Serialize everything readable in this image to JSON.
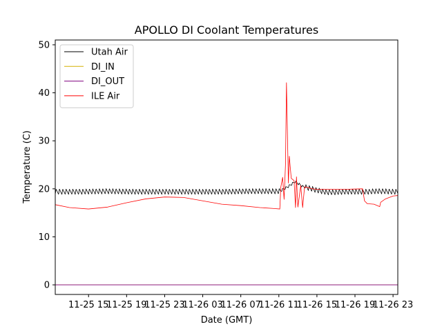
{
  "chart_data": {
    "type": "line",
    "title": "APOLLO DI Coolant Temperatures",
    "xlabel": "Date (GMT)",
    "ylabel": "Temperature (C)",
    "xlim": [
      11.5,
      47.5
    ],
    "ylim": [
      -2,
      51
    ],
    "x_unit": "hours since 2024-11-25 00:00 GMT",
    "x_ticks": [
      {
        "value": 15,
        "label": "11-25 15"
      },
      {
        "value": 19,
        "label": "11-25 19"
      },
      {
        "value": 23,
        "label": "11-25 23"
      },
      {
        "value": 27,
        "label": "11-26 03"
      },
      {
        "value": 31,
        "label": "11-26 07"
      },
      {
        "value": 35,
        "label": "11-26 11"
      },
      {
        "value": 39,
        "label": "11-26 15"
      },
      {
        "value": 43,
        "label": "11-26 19"
      },
      {
        "value": 47,
        "label": "11-26 23"
      }
    ],
    "y_ticks": [
      0,
      10,
      20,
      30,
      40,
      50
    ],
    "legend_position": "top-left",
    "series": [
      {
        "name": "Utah Air",
        "color": "#000000",
        "x": [
          11.5,
          14,
          17,
          20,
          23,
          26,
          29,
          32,
          35.1,
          36,
          36.7,
          37.5,
          38.3,
          39,
          40,
          41,
          42,
          43,
          44,
          44.5,
          45,
          46,
          47,
          47.5
        ],
        "y": [
          19.4,
          19.4,
          19.5,
          19.4,
          19.4,
          19.4,
          19.4,
          19.5,
          19.5,
          20.5,
          21.5,
          20.5,
          20.1,
          19.7,
          19.3,
          19.3,
          19.4,
          19.4,
          19.4,
          19.4,
          19.5,
          19.5,
          19.4,
          19.4
        ],
        "oscillation_amplitude": 0.55,
        "oscillation_period_h": 0.35
      },
      {
        "name": "DI_IN",
        "color": "#d4b000",
        "x": [
          11.5,
          47.5
        ],
        "y": [
          0,
          0
        ]
      },
      {
        "name": "DI_OUT",
        "color": "#800080",
        "x": [
          11.5,
          47.5
        ],
        "y": [
          0,
          0
        ]
      },
      {
        "name": "ILE Air",
        "color": "#ff0000",
        "x": [
          11.5,
          13,
          15,
          17,
          19,
          21,
          23,
          25,
          27,
          29,
          31,
          33,
          34.5,
          35.1,
          35.2,
          35.4,
          35.55,
          35.7,
          35.8,
          36.0,
          36.1,
          36.3,
          36.6,
          36.75,
          36.85,
          37.0,
          37.3,
          37.5,
          37.7,
          38.0,
          38.5,
          39,
          40,
          42,
          43.8,
          44.0,
          44.3,
          45,
          45.6,
          45.7,
          46.2,
          47,
          47.5
        ],
        "y": [
          16.7,
          16.1,
          15.8,
          16.2,
          17.1,
          17.9,
          18.3,
          18.2,
          17.5,
          16.8,
          16.5,
          16.1,
          15.9,
          15.8,
          20.3,
          22.4,
          17.8,
          25.2,
          42.1,
          21.2,
          26.8,
          22.2,
          21.7,
          16.1,
          22.5,
          16.2,
          20.7,
          16.1,
          20.4,
          20.3,
          20.0,
          19.9,
          19.9,
          19.9,
          20.0,
          17.5,
          16.9,
          16.8,
          16.3,
          17.2,
          17.9,
          18.5,
          18.6
        ]
      }
    ]
  }
}
